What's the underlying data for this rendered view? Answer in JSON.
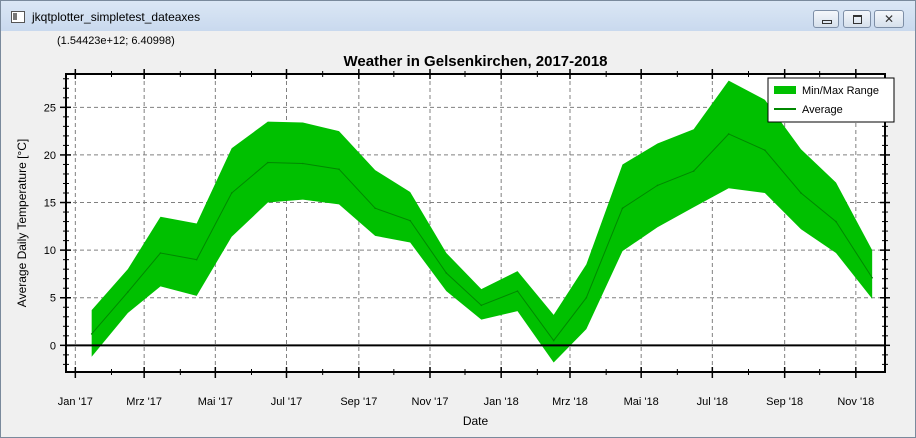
{
  "window": {
    "title": "jkqtplotter_simpletest_dateaxes",
    "close_glyph": "✕"
  },
  "coord_readout": "(1.54423e+12; 6.40998)",
  "icons": {
    "app": "application-icon",
    "minimize": "minimize-icon",
    "maximize": "maximize-icon",
    "close": "close-icon"
  },
  "chart_data": {
    "type": "area",
    "title": "Weather in Gelsenkirchen, 2017-2018",
    "xlabel": "Date",
    "ylabel": "Average Daily Temperature [°C]",
    "x": [
      "2017-01-15",
      "2017-02-15",
      "2017-03-15",
      "2017-04-15",
      "2017-05-15",
      "2017-06-15",
      "2017-07-15",
      "2017-08-15",
      "2017-09-15",
      "2017-10-15",
      "2017-11-15",
      "2017-12-15",
      "2018-01-15",
      "2018-02-15",
      "2018-03-15",
      "2018-04-15",
      "2018-05-15",
      "2018-06-15",
      "2018-07-15",
      "2018-08-15",
      "2018-09-15",
      "2018-10-15",
      "2018-11-15"
    ],
    "xlim": [
      "2016-12-24",
      "2018-11-26"
    ],
    "ylim": [
      -2.8,
      28.5
    ],
    "x_ticks": [
      {
        "date": "2017-01-01",
        "label": "Jan '17"
      },
      {
        "date": "2017-03-01",
        "label": "Mrz '17"
      },
      {
        "date": "2017-05-01",
        "label": "Mai '17"
      },
      {
        "date": "2017-07-01",
        "label": "Jul '17"
      },
      {
        "date": "2017-09-01",
        "label": "Sep '17"
      },
      {
        "date": "2017-11-01",
        "label": "Nov '17"
      },
      {
        "date": "2018-01-01",
        "label": "Jan '18"
      },
      {
        "date": "2018-03-01",
        "label": "Mrz '18"
      },
      {
        "date": "2018-05-01",
        "label": "Mai '18"
      },
      {
        "date": "2018-07-01",
        "label": "Jul '18"
      },
      {
        "date": "2018-09-01",
        "label": "Sep '18"
      },
      {
        "date": "2018-11-01",
        "label": "Nov '18"
      }
    ],
    "y_ticks": [
      0,
      5,
      10,
      15,
      20,
      25
    ],
    "grid": true,
    "legend_position": "top-right",
    "series": [
      {
        "name": "Min/Max Range",
        "kind": "range",
        "color": "#00c000",
        "min": [
          -1.2,
          3.4,
          6.2,
          5.2,
          11.4,
          15.0,
          15.3,
          14.8,
          11.5,
          10.8,
          5.7,
          2.7,
          3.6,
          -1.8,
          1.7,
          9.9,
          12.4,
          14.5,
          16.5,
          16.0,
          12.2,
          9.7,
          4.9
        ],
        "max": [
          3.7,
          8.0,
          13.5,
          12.8,
          20.7,
          23.5,
          23.4,
          22.5,
          18.4,
          16.1,
          9.7,
          5.9,
          7.8,
          3.2,
          8.5,
          19.0,
          21.2,
          22.7,
          27.8,
          25.8,
          20.6,
          17.1,
          10.0
        ]
      },
      {
        "name": "Average",
        "kind": "line",
        "color": "#008800",
        "values": [
          1.2,
          5.6,
          9.7,
          9.0,
          16.0,
          19.2,
          19.1,
          18.5,
          14.4,
          13.1,
          7.6,
          4.2,
          5.7,
          0.5,
          5.0,
          14.4,
          16.8,
          18.3,
          22.2,
          20.5,
          16.0,
          13.0,
          7.1
        ]
      }
    ]
  }
}
